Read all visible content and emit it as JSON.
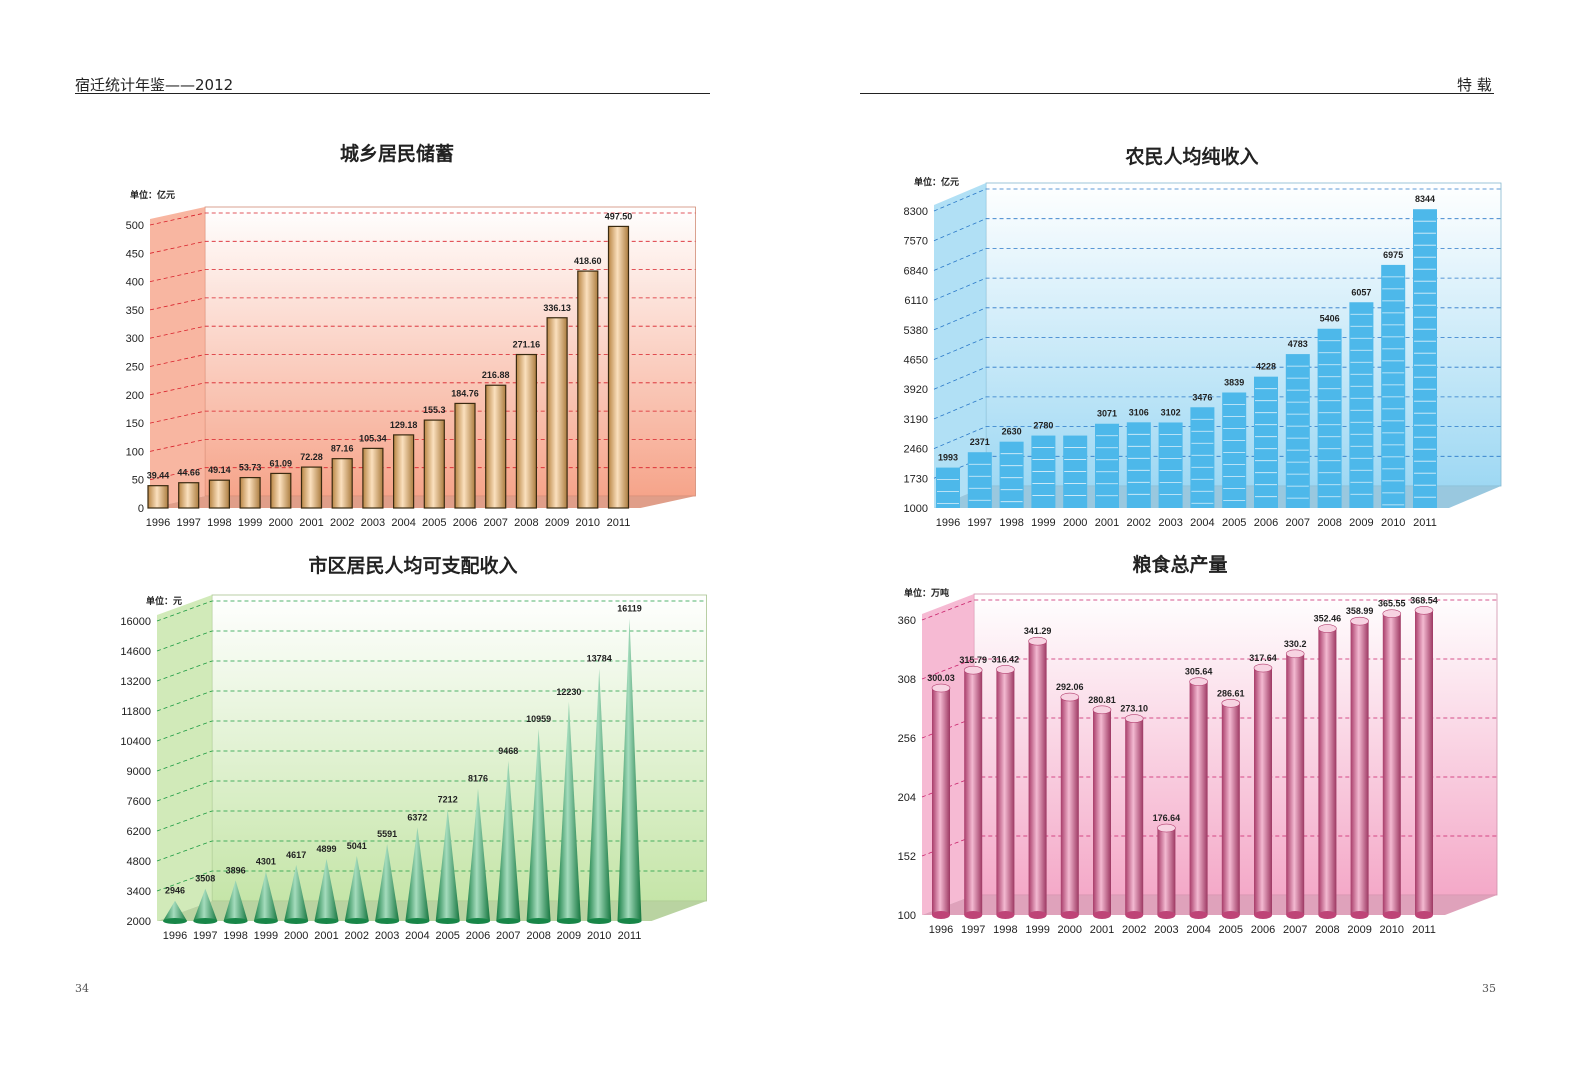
{
  "header": {
    "left_title": "宿迁统计年鉴——2012",
    "right_title": "特 载"
  },
  "pages": {
    "left_number": "34",
    "right_number": "35"
  },
  "chart_data": [
    {
      "id": "savings",
      "type": "bar",
      "title": "城乡居民储蓄",
      "unit_label": "单位：亿元",
      "categories": [
        "1996",
        "1997",
        "1998",
        "1999",
        "2000",
        "2001",
        "2002",
        "2003",
        "2004",
        "2005",
        "2006",
        "2007",
        "2008",
        "2009",
        "2010",
        "2011"
      ],
      "values": [
        39.44,
        44.66,
        49.14,
        53.73,
        61.09,
        72.28,
        87.16,
        105.34,
        129.18,
        155.3,
        184.76,
        216.88,
        271.16,
        336.13,
        418.6,
        497.5
      ],
      "labels": [
        "39.44",
        "44.66",
        "49.14",
        "53.73",
        "61.09",
        "72.28",
        "87.16",
        "105.34",
        "129.18",
        "155.3",
        "184.76",
        "216.88",
        "271.16",
        "336.13",
        "418.60",
        "497.50"
      ],
      "y_ticks": [
        "0",
        "50",
        "100",
        "150",
        "200",
        "250",
        "300",
        "350",
        "400",
        "450",
        "500"
      ],
      "ylim": [
        0,
        500
      ],
      "grid": true,
      "color_bar": "#f6b25c",
      "color_bg": "#f6a48a",
      "color_grid": "#d8202a"
    },
    {
      "id": "farmer_income",
      "type": "bar",
      "title": "农民人均纯收入",
      "unit_label": "单位：亿元",
      "categories": [
        "1996",
        "1997",
        "1998",
        "1999",
        "2000",
        "2001",
        "2002",
        "2003",
        "2004",
        "2005",
        "2006",
        "2007",
        "2008",
        "2009",
        "2010",
        "2011"
      ],
      "values": [
        1993,
        2371,
        2630,
        2780,
        2780,
        3071,
        3106,
        3102,
        3476,
        3839,
        4228,
        4783,
        5406,
        6057,
        6975,
        8344
      ],
      "labels": [
        "1993",
        "2371",
        "2630",
        "2780",
        "",
        "3071",
        "3106",
        "3102",
        "3476",
        "3839",
        "4228",
        "4783",
        "5406",
        "6057",
        "6975",
        "8344"
      ],
      "y_ticks": [
        "1000",
        "1730",
        "2460",
        "3190",
        "3920",
        "4650",
        "5380",
        "6110",
        "6840",
        "7570",
        "8300"
      ],
      "ylim": [
        1000,
        8300
      ],
      "grid": true,
      "color_bar": "#4db8ea",
      "color_bg": "#9ed8f3",
      "color_grid": "#2a78c8"
    },
    {
      "id": "urban_income",
      "type": "bar",
      "title": "市区居民人均可支配收入",
      "unit_label": "单位：元",
      "categories": [
        "1996",
        "1997",
        "1998",
        "1999",
        "2000",
        "2001",
        "2002",
        "2003",
        "2004",
        "2005",
        "2006",
        "2007",
        "2008",
        "2009",
        "2010",
        "2011"
      ],
      "values": [
        2946,
        3508,
        3896,
        4301,
        4617,
        4899,
        5041,
        5591,
        6372,
        7212,
        8176,
        9468,
        10959,
        12230,
        13784,
        16119
      ],
      "labels": [
        "2946",
        "3508",
        "3896",
        "4301",
        "4617",
        "4899",
        "5041",
        "5591",
        "6372",
        "7212",
        "8176",
        "9468",
        "10959",
        "12230",
        "13784",
        "16119"
      ],
      "y_ticks": [
        "2000",
        "3400",
        "4800",
        "6200",
        "7600",
        "9000",
        "10400",
        "11800",
        "13200",
        "14600",
        "16000"
      ],
      "ylim": [
        2000,
        16000
      ],
      "grid": true,
      "color_bar": "#1ea85a",
      "color_bg": "#c5e5a8",
      "color_grid": "#1a9a40"
    },
    {
      "id": "grain",
      "type": "bar",
      "title": "粮食总产量",
      "unit_label": "单位：万吨",
      "categories": [
        "1996",
        "1997",
        "1998",
        "1999",
        "2000",
        "2001",
        "2002",
        "2003",
        "2004",
        "2005",
        "2006",
        "2007",
        "2008",
        "2009",
        "2010",
        "2011"
      ],
      "values": [
        300.03,
        315.79,
        316.42,
        341.29,
        292.06,
        280.81,
        273.1,
        176.64,
        305.64,
        286.61,
        317.64,
        330.2,
        352.46,
        358.99,
        365.55,
        368.54
      ],
      "labels": [
        "300.03",
        "315.79",
        "316.42",
        "341.29",
        "292.06",
        "280.81",
        "273.10",
        "176.64",
        "305.64",
        "286.61",
        "317.64",
        "330.2",
        "352.46",
        "358.99",
        "365.55",
        "368.54"
      ],
      "y_ticks": [
        "100",
        "152",
        "204",
        "256",
        "308",
        "360"
      ],
      "ylim": [
        100,
        360
      ],
      "grid": true,
      "color_bar": "#e0508c",
      "color_bg": "#f4a9c8",
      "color_grid": "#c8206a"
    }
  ]
}
